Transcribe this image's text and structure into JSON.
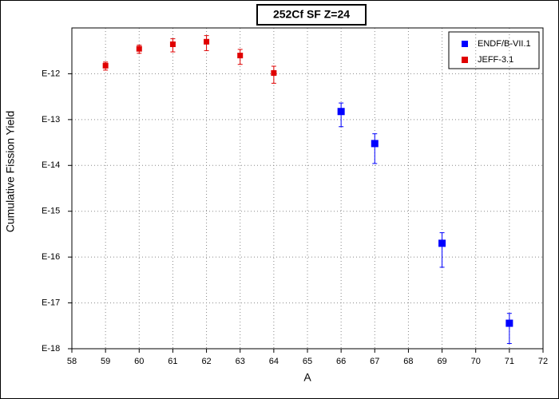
{
  "chart_data": {
    "type": "scatter",
    "title": "252Cf SF Z=24",
    "x_label": "A",
    "y_label": "Cumulative Fission Yield",
    "log_y": true,
    "grid": true,
    "legend": "upper right",
    "xlim": [
      58,
      72
    ],
    "xticks": [
      58,
      59,
      60,
      61,
      62,
      63,
      64,
      65,
      66,
      67,
      68,
      69,
      70,
      71,
      72
    ],
    "ylim": [
      1e-18,
      1e-11
    ],
    "yticks": [
      {
        "value": 1e-12,
        "label": "E-12"
      },
      {
        "value": 1e-13,
        "label": "E-13"
      },
      {
        "value": 1e-14,
        "label": "E-14"
      },
      {
        "value": 1e-15,
        "label": "E-15"
      },
      {
        "value": 1e-16,
        "label": "E-16"
      },
      {
        "value": 1e-17,
        "label": "E-17"
      },
      {
        "value": 1e-18,
        "label": "E-18"
      }
    ],
    "series": [
      {
        "name": "ENDF/B-VII.1",
        "color": "#0000ff",
        "x": [
          66,
          67,
          69,
          71
        ],
        "values": [
          1.5e-13,
          3e-14,
          2e-16,
          3.6e-18
        ],
        "errors": [
          8e-14,
          1.9e-14,
          1.4e-16,
          2.3e-18
        ]
      },
      {
        "name": "JEFF-3.1",
        "color": "#e00000",
        "x": [
          59,
          60,
          61,
          62,
          63,
          64
        ],
        "values": [
          1.5e-12,
          3.5e-12,
          4.4e-12,
          5e-12,
          2.5e-12,
          1.04e-12
        ],
        "errors": [
          3e-13,
          7e-13,
          1.4e-12,
          1.8e-12,
          9e-13,
          4.2e-13
        ]
      }
    ]
  }
}
